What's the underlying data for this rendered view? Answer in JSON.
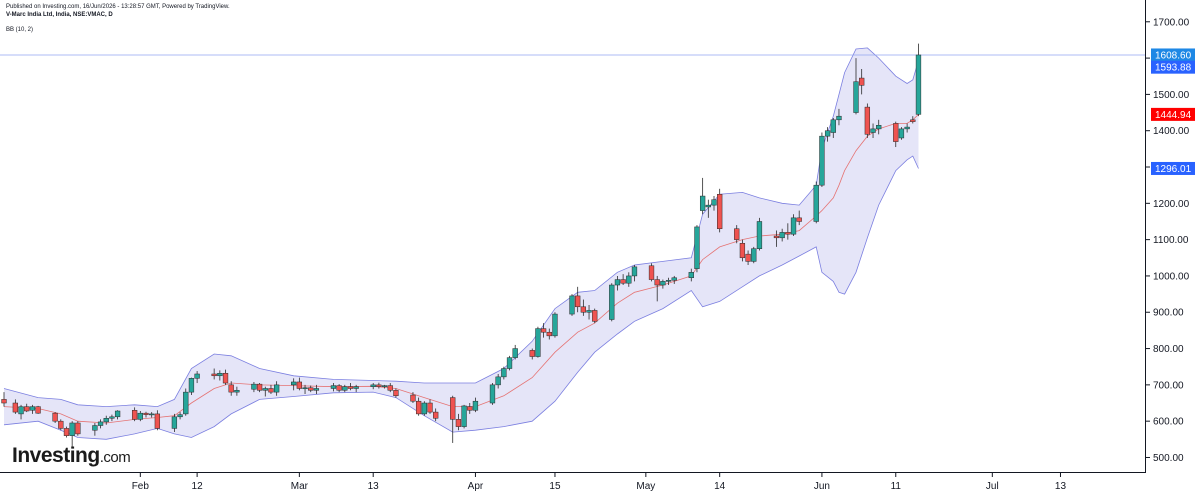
{
  "header": {
    "published": "Published on Investing.com, 16/Jun/2026 - 13:28:57 GMT, Powered by TradingView.",
    "symbol": "V-Marc India Ltd, India, NSE:VMAC, D"
  },
  "indicator_label": "BB (10, 2)",
  "logo": {
    "brand": "Investing",
    "suffix": ".com"
  },
  "colors": {
    "up": "#26a69a",
    "down": "#ef5350",
    "band_fill": "#dcdcf5",
    "band_line": "#7b7fe0",
    "basis": "#e57373",
    "price_line": "#90a4f0",
    "tag_last": "#1e88e5",
    "tag_upper": "#2962ff",
    "tag_basis": "#ff0000"
  },
  "chart_data": {
    "type": "candlestick",
    "ylim": [
      460,
      1760
    ],
    "y_ticks": [
      "500.00",
      "600.00",
      "700.00",
      "800.00",
      "900.00",
      "1000.00",
      "1100.00",
      "1200.00",
      "1300.00",
      "1400.00",
      "1500.00",
      "1600.00",
      "1700.00"
    ],
    "x_ticks": [
      {
        "label": "Feb",
        "day": 24
      },
      {
        "label": "12",
        "day": 34
      },
      {
        "label": "Mar",
        "day": 52
      },
      {
        "label": "13",
        "day": 65
      },
      {
        "label": "Apr",
        "day": 83
      },
      {
        "label": "15",
        "day": 97
      },
      {
        "label": "May",
        "day": 113
      },
      {
        "label": "14",
        "day": 126
      },
      {
        "label": "Jun",
        "day": 144
      },
      {
        "label": "11",
        "day": 157
      },
      {
        "label": "Jul",
        "day": 174
      },
      {
        "label": "13",
        "day": 186
      }
    ],
    "x_range": [
      0,
      198
    ],
    "price_tags": [
      {
        "label": "1608.60",
        "value": 1608.6,
        "color_key": "tag_last"
      },
      {
        "label": "1593.88",
        "value": 1575,
        "color_key": "tag_upper"
      },
      {
        "label": "1444.94",
        "value": 1444.94,
        "color_key": "tag_basis"
      },
      {
        "label": "1296.01",
        "value": 1296.01,
        "color_key": "tag_upper"
      }
    ],
    "last_price_line": 1608.6,
    "candles": [
      {
        "d": 0,
        "o": 660,
        "h": 680,
        "l": 640,
        "c": 650
      },
      {
        "d": 2,
        "o": 650,
        "h": 660,
        "l": 620,
        "c": 625
      },
      {
        "d": 3,
        "o": 620,
        "h": 645,
        "l": 605,
        "c": 640
      },
      {
        "d": 4,
        "o": 640,
        "h": 648,
        "l": 625,
        "c": 628
      },
      {
        "d": 5,
        "o": 630,
        "h": 645,
        "l": 620,
        "c": 640
      },
      {
        "d": 6,
        "o": 640,
        "h": 642,
        "l": 620,
        "c": 622
      },
      {
        "d": 9,
        "o": 622,
        "h": 625,
        "l": 595,
        "c": 600
      },
      {
        "d": 10,
        "o": 600,
        "h": 605,
        "l": 575,
        "c": 580
      },
      {
        "d": 11,
        "o": 580,
        "h": 585,
        "l": 555,
        "c": 560
      },
      {
        "d": 12,
        "o": 560,
        "h": 600,
        "l": 530,
        "c": 595
      },
      {
        "d": 13,
        "o": 595,
        "h": 600,
        "l": 560,
        "c": 565
      },
      {
        "d": 16,
        "o": 575,
        "h": 595,
        "l": 560,
        "c": 588
      },
      {
        "d": 17,
        "o": 588,
        "h": 605,
        "l": 580,
        "c": 598
      },
      {
        "d": 18,
        "o": 598,
        "h": 615,
        "l": 590,
        "c": 608
      },
      {
        "d": 19,
        "o": 608,
        "h": 618,
        "l": 600,
        "c": 612
      },
      {
        "d": 20,
        "o": 612,
        "h": 630,
        "l": 605,
        "c": 628
      },
      {
        "d": 23,
        "o": 630,
        "h": 638,
        "l": 600,
        "c": 605
      },
      {
        "d": 24,
        "o": 605,
        "h": 628,
        "l": 600,
        "c": 622
      },
      {
        "d": 25,
        "o": 622,
        "h": 626,
        "l": 610,
        "c": 618
      },
      {
        "d": 26,
        "o": 618,
        "h": 625,
        "l": 610,
        "c": 620
      },
      {
        "d": 27,
        "o": 620,
        "h": 630,
        "l": 575,
        "c": 580
      },
      {
        "d": 30,
        "o": 580,
        "h": 620,
        "l": 570,
        "c": 612
      },
      {
        "d": 31,
        "o": 612,
        "h": 625,
        "l": 605,
        "c": 618
      },
      {
        "d": 32,
        "o": 620,
        "h": 690,
        "l": 615,
        "c": 680
      },
      {
        "d": 33,
        "o": 680,
        "h": 720,
        "l": 672,
        "c": 718
      },
      {
        "d": 34,
        "o": 718,
        "h": 738,
        "l": 705,
        "c": 730
      },
      {
        "d": 37,
        "o": 730,
        "h": 745,
        "l": 715,
        "c": 725
      },
      {
        "d": 38,
        "o": 725,
        "h": 740,
        "l": 712,
        "c": 732
      },
      {
        "d": 39,
        "o": 732,
        "h": 742,
        "l": 700,
        "c": 705
      },
      {
        "d": 40,
        "o": 700,
        "h": 710,
        "l": 670,
        "c": 680
      },
      {
        "d": 41,
        "o": 680,
        "h": 695,
        "l": 670,
        "c": 685
      },
      {
        "d": 44,
        "o": 688,
        "h": 708,
        "l": 680,
        "c": 702
      },
      {
        "d": 45,
        "o": 702,
        "h": 705,
        "l": 680,
        "c": 685
      },
      {
        "d": 46,
        "o": 685,
        "h": 695,
        "l": 668,
        "c": 690
      },
      {
        "d": 47,
        "o": 690,
        "h": 700,
        "l": 675,
        "c": 680
      },
      {
        "d": 48,
        "o": 680,
        "h": 710,
        "l": 670,
        "c": 700
      },
      {
        "d": 51,
        "o": 700,
        "h": 718,
        "l": 685,
        "c": 708
      },
      {
        "d": 52,
        "o": 708,
        "h": 720,
        "l": 685,
        "c": 690
      },
      {
        "d": 53,
        "o": 690,
        "h": 700,
        "l": 675,
        "c": 692
      },
      {
        "d": 54,
        "o": 692,
        "h": 698,
        "l": 680,
        "c": 685
      },
      {
        "d": 55,
        "o": 685,
        "h": 700,
        "l": 675,
        "c": 690
      },
      {
        "d": 58,
        "o": 690,
        "h": 705,
        "l": 682,
        "c": 698
      },
      {
        "d": 59,
        "o": 698,
        "h": 702,
        "l": 680,
        "c": 685
      },
      {
        "d": 60,
        "o": 685,
        "h": 700,
        "l": 680,
        "c": 695
      },
      {
        "d": 61,
        "o": 695,
        "h": 705,
        "l": 685,
        "c": 690
      },
      {
        "d": 62,
        "o": 690,
        "h": 700,
        "l": 680,
        "c": 695
      },
      {
        "d": 65,
        "o": 695,
        "h": 705,
        "l": 688,
        "c": 700
      },
      {
        "d": 66,
        "o": 700,
        "h": 706,
        "l": 690,
        "c": 695
      },
      {
        "d": 67,
        "o": 695,
        "h": 700,
        "l": 690,
        "c": 698
      },
      {
        "d": 68,
        "o": 698,
        "h": 705,
        "l": 680,
        "c": 685
      },
      {
        "d": 69,
        "o": 685,
        "h": 690,
        "l": 665,
        "c": 670
      },
      {
        "d": 72,
        "o": 672,
        "h": 680,
        "l": 650,
        "c": 655
      },
      {
        "d": 73,
        "o": 655,
        "h": 665,
        "l": 615,
        "c": 620
      },
      {
        "d": 74,
        "o": 620,
        "h": 655,
        "l": 615,
        "c": 650
      },
      {
        "d": 75,
        "o": 650,
        "h": 660,
        "l": 620,
        "c": 625
      },
      {
        "d": 76,
        "o": 625,
        "h": 635,
        "l": 600,
        "c": 608
      },
      {
        "d": 79,
        "o": 665,
        "h": 670,
        "l": 540,
        "c": 605
      },
      {
        "d": 80,
        "o": 605,
        "h": 620,
        "l": 575,
        "c": 585
      },
      {
        "d": 81,
        "o": 585,
        "h": 645,
        "l": 580,
        "c": 642
      },
      {
        "d": 82,
        "o": 640,
        "h": 650,
        "l": 620,
        "c": 630
      },
      {
        "d": 83,
        "o": 630,
        "h": 665,
        "l": 625,
        "c": 655
      },
      {
        "d": 86,
        "o": 650,
        "h": 705,
        "l": 645,
        "c": 700
      },
      {
        "d": 87,
        "o": 700,
        "h": 730,
        "l": 690,
        "c": 722
      },
      {
        "d": 88,
        "o": 722,
        "h": 750,
        "l": 715,
        "c": 745
      },
      {
        "d": 89,
        "o": 745,
        "h": 780,
        "l": 740,
        "c": 775
      },
      {
        "d": 90,
        "o": 775,
        "h": 810,
        "l": 770,
        "c": 800
      },
      {
        "d": 93,
        "o": 795,
        "h": 800,
        "l": 770,
        "c": 778
      },
      {
        "d": 94,
        "o": 778,
        "h": 860,
        "l": 775,
        "c": 855
      },
      {
        "d": 95,
        "o": 855,
        "h": 870,
        "l": 830,
        "c": 845
      },
      {
        "d": 96,
        "o": 845,
        "h": 855,
        "l": 825,
        "c": 835
      },
      {
        "d": 97,
        "o": 835,
        "h": 900,
        "l": 830,
        "c": 895
      },
      {
        "d": 100,
        "o": 895,
        "h": 950,
        "l": 890,
        "c": 945
      },
      {
        "d": 101,
        "o": 945,
        "h": 970,
        "l": 900,
        "c": 915
      },
      {
        "d": 102,
        "o": 915,
        "h": 935,
        "l": 890,
        "c": 900
      },
      {
        "d": 103,
        "o": 900,
        "h": 920,
        "l": 880,
        "c": 905
      },
      {
        "d": 104,
        "o": 905,
        "h": 910,
        "l": 870,
        "c": 875
      },
      {
        "d": 107,
        "o": 880,
        "h": 980,
        "l": 875,
        "c": 975
      },
      {
        "d": 108,
        "o": 975,
        "h": 1000,
        "l": 960,
        "c": 990
      },
      {
        "d": 109,
        "o": 990,
        "h": 1005,
        "l": 975,
        "c": 980
      },
      {
        "d": 110,
        "o": 980,
        "h": 1010,
        "l": 970,
        "c": 1000
      },
      {
        "d": 111,
        "o": 1000,
        "h": 1030,
        "l": 985,
        "c": 1025
      },
      {
        "d": 114,
        "o": 1028,
        "h": 1035,
        "l": 985,
        "c": 990
      },
      {
        "d": 115,
        "o": 990,
        "h": 1000,
        "l": 930,
        "c": 975
      },
      {
        "d": 116,
        "o": 975,
        "h": 990,
        "l": 965,
        "c": 985
      },
      {
        "d": 117,
        "o": 985,
        "h": 995,
        "l": 975,
        "c": 988
      },
      {
        "d": 118,
        "o": 988,
        "h": 1000,
        "l": 978,
        "c": 995
      },
      {
        "d": 121,
        "o": 995,
        "h": 1020,
        "l": 985,
        "c": 1010
      },
      {
        "d": 122,
        "o": 1020,
        "h": 1140,
        "l": 1010,
        "c": 1135
      },
      {
        "d": 123,
        "o": 1180,
        "h": 1270,
        "l": 1170,
        "c": 1220
      },
      {
        "d": 124,
        "o": 1190,
        "h": 1210,
        "l": 1160,
        "c": 1195
      },
      {
        "d": 125,
        "o": 1195,
        "h": 1220,
        "l": 1180,
        "c": 1210
      },
      {
        "d": 126,
        "o": 1225,
        "h": 1240,
        "l": 1120,
        "c": 1130
      },
      {
        "d": 129,
        "o": 1130,
        "h": 1140,
        "l": 1090,
        "c": 1100
      },
      {
        "d": 130,
        "o": 1090,
        "h": 1100,
        "l": 1040,
        "c": 1050
      },
      {
        "d": 131,
        "o": 1060,
        "h": 1070,
        "l": 1030,
        "c": 1040
      },
      {
        "d": 132,
        "o": 1040,
        "h": 1080,
        "l": 1035,
        "c": 1075
      },
      {
        "d": 133,
        "o": 1075,
        "h": 1160,
        "l": 1070,
        "c": 1150
      },
      {
        "d": 136,
        "o": 1110,
        "h": 1125,
        "l": 1080,
        "c": 1105
      },
      {
        "d": 137,
        "o": 1105,
        "h": 1130,
        "l": 1095,
        "c": 1120
      },
      {
        "d": 138,
        "o": 1120,
        "h": 1145,
        "l": 1100,
        "c": 1115
      },
      {
        "d": 139,
        "o": 1115,
        "h": 1170,
        "l": 1110,
        "c": 1160
      },
      {
        "d": 140,
        "o": 1160,
        "h": 1180,
        "l": 1140,
        "c": 1150
      },
      {
        "d": 143,
        "o": 1150,
        "h": 1260,
        "l": 1145,
        "c": 1250
      },
      {
        "d": 144,
        "o": 1250,
        "h": 1395,
        "l": 1245,
        "c": 1385
      },
      {
        "d": 145,
        "o": 1385,
        "h": 1410,
        "l": 1370,
        "c": 1400
      },
      {
        "d": 146,
        "o": 1395,
        "h": 1435,
        "l": 1380,
        "c": 1430
      },
      {
        "d": 147,
        "o": 1430,
        "h": 1460,
        "l": 1415,
        "c": 1440
      },
      {
        "d": 150,
        "o": 1450,
        "h": 1600,
        "l": 1445,
        "c": 1535
      },
      {
        "d": 151,
        "o": 1545,
        "h": 1570,
        "l": 1500,
        "c": 1525
      },
      {
        "d": 152,
        "o": 1465,
        "h": 1475,
        "l": 1380,
        "c": 1390
      },
      {
        "d": 153,
        "o": 1395,
        "h": 1420,
        "l": 1380,
        "c": 1405
      },
      {
        "d": 154,
        "o": 1405,
        "h": 1430,
        "l": 1390,
        "c": 1415
      },
      {
        "d": 157,
        "o": 1420,
        "h": 1425,
        "l": 1355,
        "c": 1370
      },
      {
        "d": 158,
        "o": 1380,
        "h": 1410,
        "l": 1375,
        "c": 1405
      },
      {
        "d": 159,
        "o": 1405,
        "h": 1420,
        "l": 1395,
        "c": 1410
      },
      {
        "d": 160,
        "o": 1430,
        "h": 1440,
        "l": 1420,
        "c": 1425
      },
      {
        "d": 161,
        "o": 1445,
        "h": 1640,
        "l": 1440,
        "c": 1608.6
      }
    ],
    "bands": [
      {
        "d": 0,
        "u": 690,
        "m": 640,
        "l": 590
      },
      {
        "d": 6,
        "u": 665,
        "m": 635,
        "l": 600
      },
      {
        "d": 10,
        "u": 660,
        "m": 620,
        "l": 575
      },
      {
        "d": 13,
        "u": 645,
        "m": 600,
        "l": 555
      },
      {
        "d": 18,
        "u": 640,
        "m": 595,
        "l": 550
      },
      {
        "d": 23,
        "u": 645,
        "m": 605,
        "l": 565
      },
      {
        "d": 27,
        "u": 640,
        "m": 610,
        "l": 580
      },
      {
        "d": 30,
        "u": 660,
        "m": 615,
        "l": 565
      },
      {
        "d": 33,
        "u": 745,
        "m": 650,
        "l": 555
      },
      {
        "d": 37,
        "u": 785,
        "m": 690,
        "l": 585
      },
      {
        "d": 40,
        "u": 780,
        "m": 705,
        "l": 620
      },
      {
        "d": 45,
        "u": 745,
        "m": 700,
        "l": 660
      },
      {
        "d": 51,
        "u": 725,
        "m": 698,
        "l": 668
      },
      {
        "d": 58,
        "u": 715,
        "m": 695,
        "l": 678
      },
      {
        "d": 65,
        "u": 712,
        "m": 696,
        "l": 680
      },
      {
        "d": 69,
        "u": 710,
        "m": 690,
        "l": 665
      },
      {
        "d": 74,
        "u": 705,
        "m": 665,
        "l": 615
      },
      {
        "d": 79,
        "u": 705,
        "m": 640,
        "l": 570
      },
      {
        "d": 83,
        "u": 705,
        "m": 640,
        "l": 575
      },
      {
        "d": 88,
        "u": 745,
        "m": 670,
        "l": 585
      },
      {
        "d": 93,
        "u": 820,
        "m": 720,
        "l": 600
      },
      {
        "d": 97,
        "u": 910,
        "m": 790,
        "l": 655
      },
      {
        "d": 101,
        "u": 955,
        "m": 845,
        "l": 735
      },
      {
        "d": 104,
        "u": 960,
        "m": 870,
        "l": 790
      },
      {
        "d": 108,
        "u": 1010,
        "m": 925,
        "l": 840
      },
      {
        "d": 111,
        "u": 1030,
        "m": 955,
        "l": 875
      },
      {
        "d": 116,
        "u": 1040,
        "m": 975,
        "l": 910
      },
      {
        "d": 121,
        "u": 1050,
        "m": 1000,
        "l": 960
      },
      {
        "d": 123,
        "u": 1170,
        "m": 1045,
        "l": 915
      },
      {
        "d": 126,
        "u": 1225,
        "m": 1080,
        "l": 930
      },
      {
        "d": 130,
        "u": 1230,
        "m": 1100,
        "l": 970
      },
      {
        "d": 133,
        "u": 1215,
        "m": 1110,
        "l": 1000
      },
      {
        "d": 137,
        "u": 1200,
        "m": 1115,
        "l": 1030
      },
      {
        "d": 140,
        "u": 1195,
        "m": 1125,
        "l": 1055
      },
      {
        "d": 143,
        "u": 1250,
        "m": 1165,
        "l": 1080
      },
      {
        "d": 144,
        "u": 1350,
        "m": 1180,
        "l": 1010
      },
      {
        "d": 146,
        "u": 1440,
        "m": 1215,
        "l": 985
      },
      {
        "d": 147,
        "u": 1500,
        "m": 1250,
        "l": 955
      },
      {
        "d": 148,
        "u": 1560,
        "m": 1290,
        "l": 950
      },
      {
        "d": 150,
        "u": 1625,
        "m": 1345,
        "l": 1010
      },
      {
        "d": 152,
        "u": 1628,
        "m": 1385,
        "l": 1105
      },
      {
        "d": 154,
        "u": 1600,
        "m": 1405,
        "l": 1195
      },
      {
        "d": 157,
        "u": 1550,
        "m": 1420,
        "l": 1290
      },
      {
        "d": 159,
        "u": 1530,
        "m": 1420,
        "l": 1320
      },
      {
        "d": 160,
        "u": 1540,
        "m": 1430,
        "l": 1330
      },
      {
        "d": 161,
        "u": 1593.88,
        "m": 1444.94,
        "l": 1296.01
      }
    ]
  }
}
